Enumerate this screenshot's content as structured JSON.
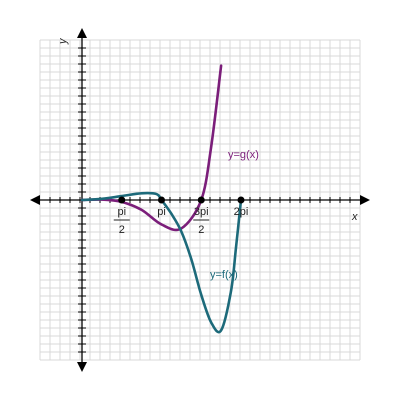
{
  "chart_data": {
    "type": "line",
    "title": "",
    "xlabel": "x",
    "ylabel": "y",
    "xlim": [
      -1.0,
      7.0
    ],
    "ylim": [
      -3.4,
      3.4
    ],
    "grid": true,
    "x_ticks": [
      {
        "value": 1.5708,
        "numerator": "pi",
        "denominator": "2"
      },
      {
        "value": 3.1416,
        "numerator": "pi",
        "denominator": ""
      },
      {
        "value": 4.7124,
        "numerator": "3pi",
        "denominator": "2"
      },
      {
        "value": 6.2832,
        "numerator": "2pi",
        "denominator": ""
      }
    ],
    "series": [
      {
        "name": "y=g(x)",
        "color": "#7b1e7a",
        "x": [
          0.0,
          0.785,
          1.571,
          2.356,
          3.142,
          3.927,
          4.712,
          5.105,
          5.497
        ],
        "y": [
          0.0,
          0.01,
          -0.05,
          -0.25,
          -0.62,
          -0.72,
          0.0,
          1.35,
          3.4
        ]
      },
      {
        "name": "y=f(x)",
        "color": "#1d6a7a",
        "x": [
          0.0,
          0.785,
          1.571,
          2.356,
          2.945,
          3.142,
          3.534,
          3.927,
          4.32,
          4.712,
          5.105,
          5.498,
          5.89,
          6.086,
          6.283
        ],
        "y": [
          0.0,
          0.03,
          0.1,
          0.17,
          0.15,
          0.0,
          -0.35,
          -0.8,
          -1.5,
          -2.4,
          -3.1,
          -3.3,
          -2.3,
          -1.2,
          0.0
        ]
      }
    ],
    "points": [
      {
        "x": 1.5708,
        "y": 0
      },
      {
        "x": 3.1416,
        "y": 0
      },
      {
        "x": 4.7124,
        "y": 0
      },
      {
        "x": 6.2832,
        "y": 0
      }
    ]
  }
}
